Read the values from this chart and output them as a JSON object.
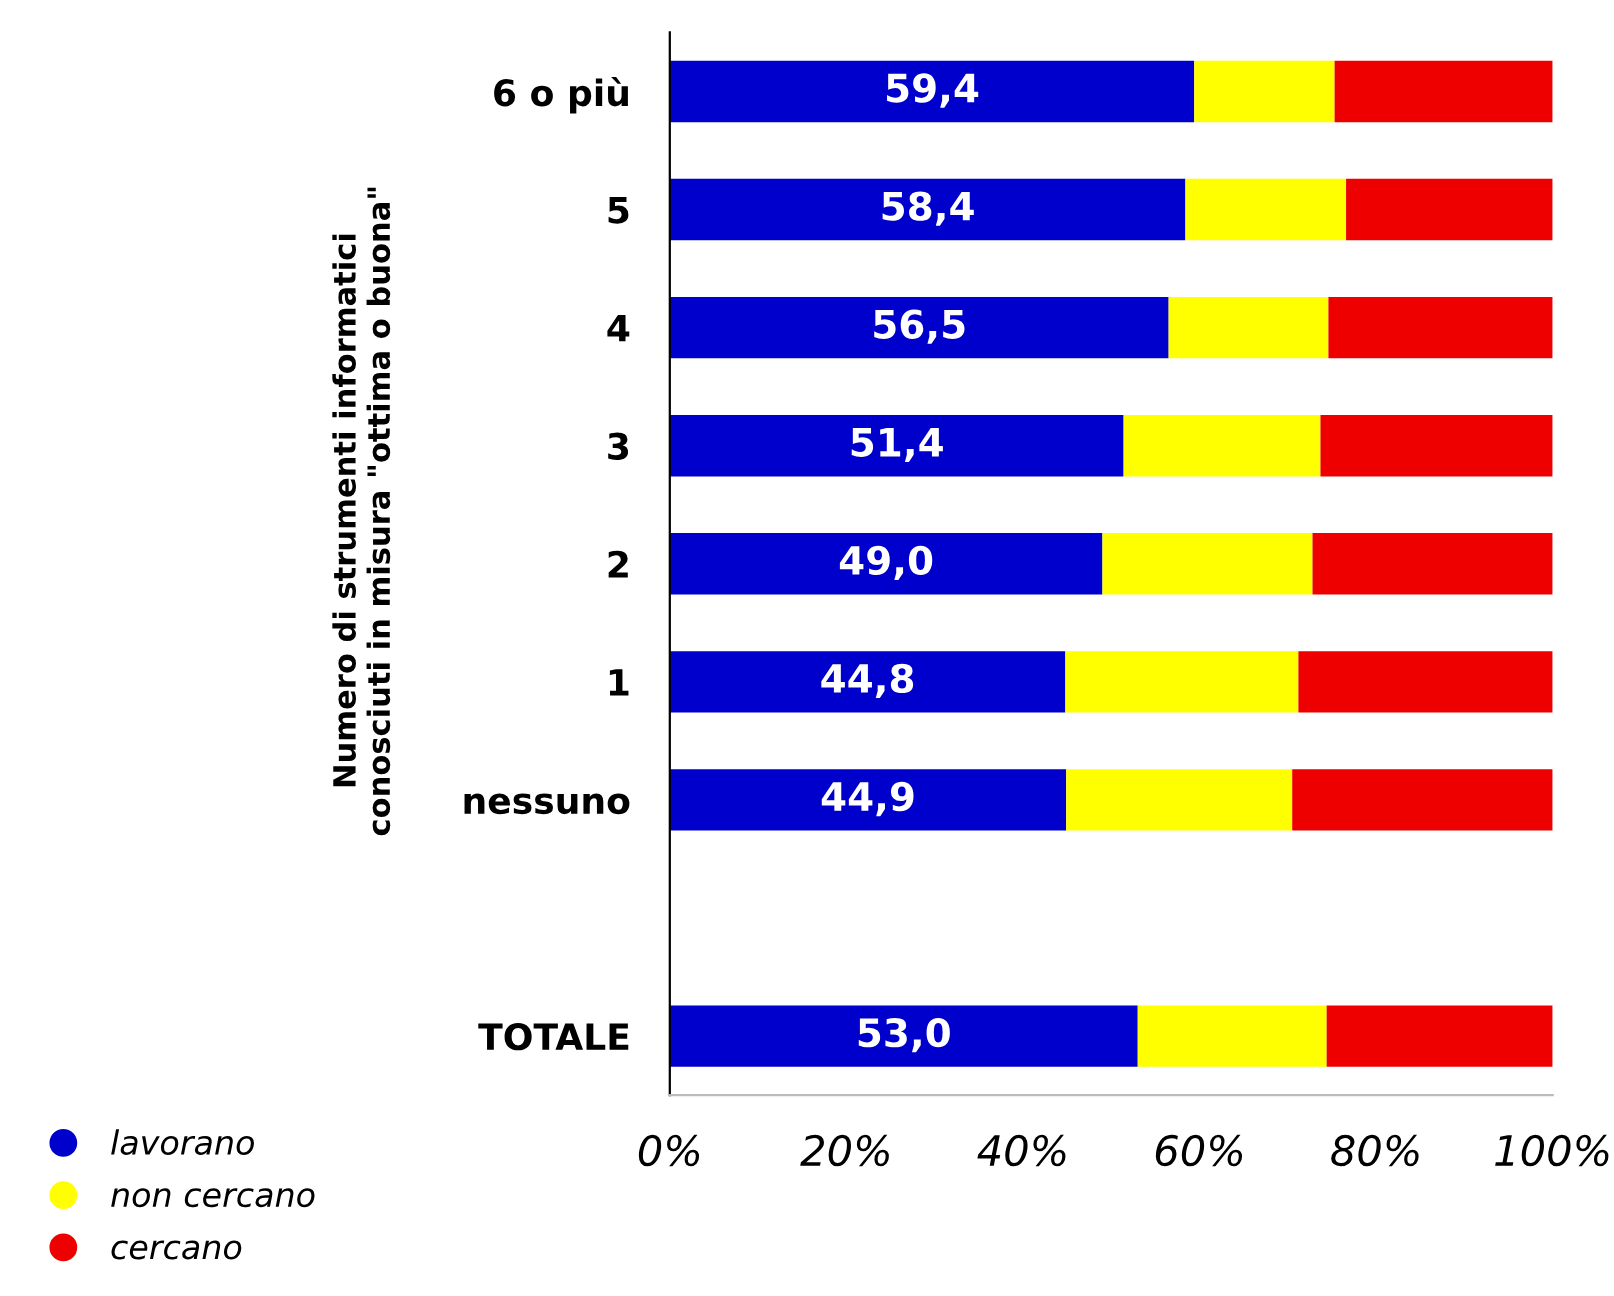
{
  "chart_data": {
    "type": "bar",
    "orientation": "horizontal",
    "stacked": true,
    "ylabel": "Numero di strumenti informatici\nconosciuti in misura \"ottima o buona\"",
    "categories": [
      "6 o più",
      "5",
      "4",
      "3",
      "2",
      "1",
      "nessuno",
      null,
      "TOTALE"
    ],
    "series": [
      {
        "name": "lavorano",
        "color": "#0000cc",
        "values": [
          59.4,
          58.4,
          56.5,
          51.4,
          49.0,
          44.8,
          44.9,
          null,
          53.0
        ],
        "value_labels": [
          "59,4",
          "58,4",
          "56,5",
          "51,4",
          "49,0",
          "44,8",
          "44,9",
          null,
          "53,0"
        ]
      },
      {
        "name": "non cercano",
        "color": "#ffff00",
        "values": [
          15.9,
          18.2,
          18.1,
          22.3,
          23.8,
          26.4,
          25.6,
          null,
          21.4
        ]
      },
      {
        "name": "cercano",
        "color": "#ee0000",
        "values": [
          24.7,
          23.4,
          25.4,
          26.3,
          27.2,
          28.8,
          29.5,
          null,
          25.6
        ]
      }
    ],
    "xlim": [
      0,
      100
    ],
    "xticks": [
      {
        "value": 0,
        "label": "0%"
      },
      {
        "value": 20,
        "label": "20%"
      },
      {
        "value": 40,
        "label": "40%"
      },
      {
        "value": 60,
        "label": "60%"
      },
      {
        "value": 80,
        "label": "80%"
      },
      {
        "value": 100,
        "label": "100%"
      }
    ],
    "grid": false,
    "legend": "bottom left"
  }
}
